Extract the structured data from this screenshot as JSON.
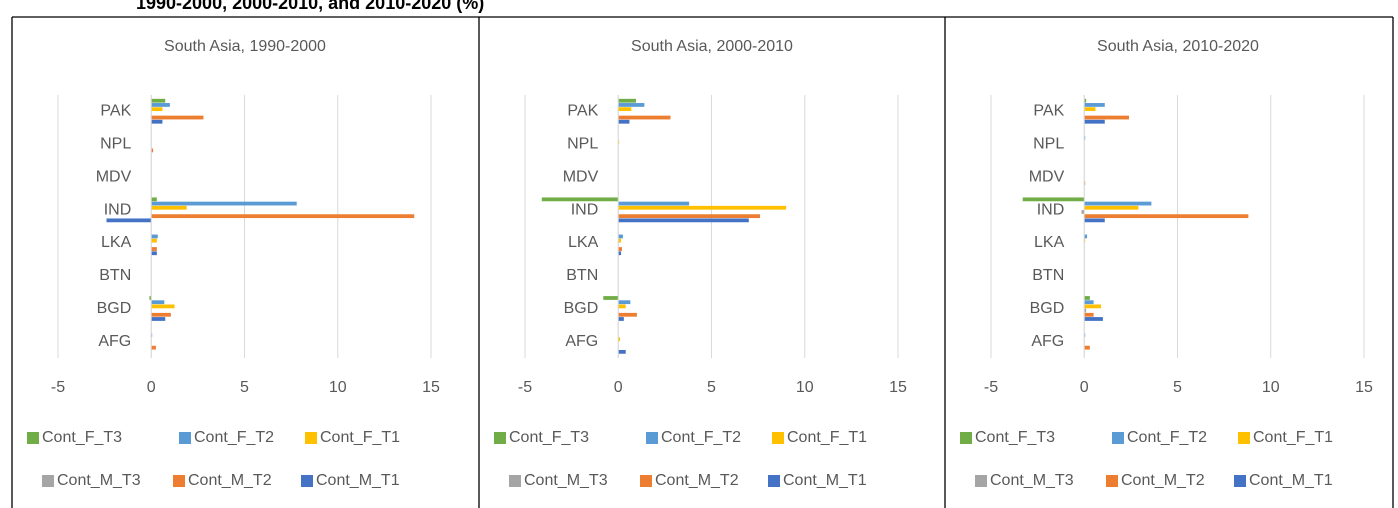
{
  "header": {
    "title": "1990-2000, 2000-2010, and 2010-2020 (%)"
  },
  "chart_data": [
    {
      "type": "bar",
      "orientation": "horizontal",
      "title": "South Asia, 1990-2000",
      "categories": [
        "PAK",
        "NPL",
        "MDV",
        "IND",
        "LKA",
        "BTN",
        "BGD",
        "AFG"
      ],
      "series": [
        {
          "name": "Cont_F_T3",
          "color": "#70ad47",
          "values": [
            0.75,
            0,
            0,
            0.3,
            0,
            0,
            -0.1,
            0
          ]
        },
        {
          "name": "Cont_F_T2",
          "color": "#5b9bd5",
          "values": [
            1.0,
            0,
            0,
            7.8,
            0.35,
            0,
            0.7,
            0.05
          ]
        },
        {
          "name": "Cont_F_T1",
          "color": "#ffc000",
          "values": [
            0.6,
            0,
            0,
            1.9,
            0.3,
            0,
            1.25,
            0
          ]
        },
        {
          "name": "Cont_M_T3",
          "color": "#a5a5a5",
          "values": [
            0,
            0,
            0,
            0,
            0,
            0,
            0,
            0
          ]
        },
        {
          "name": "Cont_M_T2",
          "color": "#ed7d31",
          "values": [
            2.8,
            0.1,
            0,
            14.1,
            0.3,
            0,
            1.05,
            0.25
          ]
        },
        {
          "name": "Cont_M_T1",
          "color": "#4472c4",
          "values": [
            0.6,
            0,
            0,
            -2.4,
            0.3,
            0,
            0.75,
            0
          ]
        }
      ],
      "xlim": [
        -5,
        15
      ],
      "xticks": [
        -5,
        0,
        5,
        10,
        15
      ],
      "grid": true
    },
    {
      "type": "bar",
      "orientation": "horizontal",
      "title": "South Asia, 2000-2010",
      "categories": [
        "PAK",
        "NPL",
        "MDV",
        "IND",
        "LKA",
        "BTN",
        "BGD",
        "AFG"
      ],
      "series": [
        {
          "name": "Cont_F_T3",
          "color": "#70ad47",
          "values": [
            0.95,
            0,
            0,
            -4.1,
            0,
            0,
            -0.8,
            0
          ]
        },
        {
          "name": "Cont_F_T2",
          "color": "#5b9bd5",
          "values": [
            1.4,
            0,
            0,
            3.8,
            0.25,
            0,
            0.65,
            0
          ]
        },
        {
          "name": "Cont_F_T1",
          "color": "#ffc000",
          "values": [
            0.7,
            0.05,
            0,
            9.0,
            0.15,
            0,
            0.4,
            0.1
          ]
        },
        {
          "name": "Cont_M_T3",
          "color": "#a5a5a5",
          "values": [
            0,
            0,
            0,
            0,
            0,
            0,
            0,
            0
          ]
        },
        {
          "name": "Cont_M_T2",
          "color": "#ed7d31",
          "values": [
            2.8,
            0,
            0,
            7.6,
            0.2,
            0,
            1.0,
            0
          ]
        },
        {
          "name": "Cont_M_T1",
          "color": "#4472c4",
          "values": [
            0.6,
            0,
            0,
            7.0,
            0.15,
            0,
            0.3,
            0.4
          ]
        }
      ],
      "xlim": [
        -5,
        15
      ],
      "xticks": [
        -5,
        0,
        5,
        10,
        15
      ],
      "grid": true
    },
    {
      "type": "bar",
      "orientation": "horizontal",
      "title": "South Asia, 2010-2020",
      "categories": [
        "PAK",
        "NPL",
        "MDV",
        "IND",
        "LKA",
        "BTN",
        "BGD",
        "AFG"
      ],
      "series": [
        {
          "name": "Cont_F_T3",
          "color": "#70ad47",
          "values": [
            0.1,
            0,
            0,
            -3.3,
            0,
            0,
            0.3,
            0
          ]
        },
        {
          "name": "Cont_F_T2",
          "color": "#5b9bd5",
          "values": [
            1.1,
            0.05,
            0,
            3.6,
            0.15,
            0,
            0.5,
            0.05
          ]
        },
        {
          "name": "Cont_F_T1",
          "color": "#ffc000",
          "values": [
            0.6,
            0,
            0,
            2.9,
            0.05,
            0,
            0.9,
            0
          ]
        },
        {
          "name": "Cont_M_T3",
          "color": "#a5a5a5",
          "values": [
            0,
            0,
            0,
            -0.15,
            0,
            0,
            0.1,
            0
          ]
        },
        {
          "name": "Cont_M_T2",
          "color": "#ed7d31",
          "values": [
            2.4,
            0,
            0.05,
            8.8,
            0,
            0,
            0.5,
            0.3
          ]
        },
        {
          "name": "Cont_M_T1",
          "color": "#4472c4",
          "values": [
            1.1,
            0,
            0,
            1.1,
            0,
            0,
            1.0,
            0
          ]
        }
      ],
      "xlim": [
        -5,
        15
      ],
      "xticks": [
        -5,
        0,
        5,
        10,
        15
      ],
      "grid": true
    }
  ]
}
